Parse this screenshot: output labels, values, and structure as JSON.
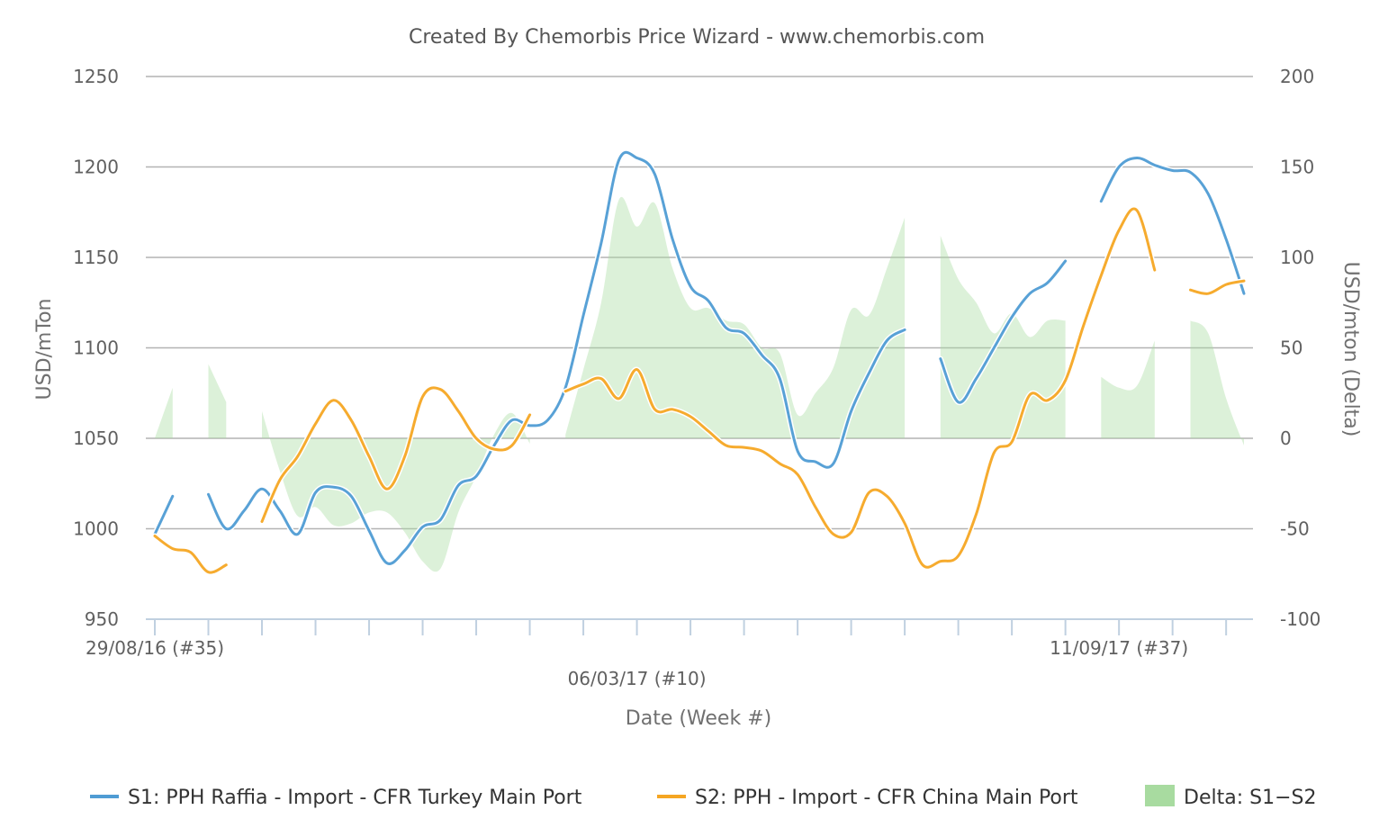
{
  "chart_data": {
    "type": "line",
    "title": "Created By Chemorbis Price Wizard - www.chemorbis.com",
    "xlabel": "Date (Week #)",
    "ylabel": "USD/mTon",
    "y2label": "USD/mton (Delta)",
    "ylim": [
      950,
      1250
    ],
    "y2lim": [
      -100,
      200
    ],
    "yticks": [
      950,
      1000,
      1050,
      1100,
      1150,
      1200,
      1250
    ],
    "y2ticks": [
      -100,
      -50,
      0,
      50,
      100,
      150,
      200
    ],
    "xlim": [
      0,
      61
    ],
    "x_tick_positions": [
      0,
      3,
      6,
      9,
      12,
      15,
      18,
      21,
      24,
      27,
      30,
      33,
      36,
      39,
      42,
      45,
      48,
      51,
      54,
      57,
      60
    ],
    "x_tick_labels": [
      {
        "x": 0,
        "label": "29/08/16 (#35)",
        "row": 0
      },
      {
        "x": 27,
        "label": "06/03/17 (#10)",
        "row": 1
      },
      {
        "x": 54,
        "label": "11/09/17 (#37)",
        "row": 0
      }
    ],
    "grid": true,
    "legend_position": "bottom",
    "colors": {
      "s1": "#4f9cd4",
      "s2": "#f5a623",
      "delta": "#a8dba0"
    },
    "series": [
      {
        "name": "S1: PPH Raffia - Import - CFR Turkey Main Port",
        "axis": "left",
        "segments": [
          [
            [
              0,
              997
            ],
            [
              1,
              1018
            ]
          ],
          [
            [
              3,
              1019
            ],
            [
              4,
              1000
            ],
            [
              5,
              1010
            ],
            [
              6,
              1022
            ],
            [
              7,
              1010
            ],
            [
              8,
              997
            ],
            [
              9,
              1020
            ],
            [
              10,
              1023
            ],
            [
              11,
              1018
            ],
            [
              12,
              999
            ],
            [
              13,
              981
            ],
            [
              14,
              988
            ],
            [
              15,
              1001
            ],
            [
              16,
              1005
            ],
            [
              17,
              1024
            ],
            [
              18,
              1029
            ],
            [
              19,
              1046
            ],
            [
              20,
              1060
            ],
            [
              21,
              1057
            ],
            [
              22,
              1060
            ],
            [
              23,
              1078
            ],
            [
              24,
              1118
            ],
            [
              25,
              1158
            ],
            [
              26,
              1204
            ],
            [
              27,
              1205
            ],
            [
              28,
              1196
            ],
            [
              29,
              1160
            ],
            [
              30,
              1134
            ],
            [
              31,
              1126
            ],
            [
              32,
              1111
            ],
            [
              33,
              1108
            ],
            [
              34,
              1096
            ],
            [
              35,
              1083
            ],
            [
              36,
              1043
            ],
            [
              37,
              1037
            ],
            [
              38,
              1036
            ],
            [
              39,
              1065
            ],
            [
              40,
              1086
            ],
            [
              41,
              1104
            ],
            [
              42,
              1110
            ]
          ],
          [
            [
              44,
              1094
            ],
            [
              45,
              1070
            ],
            [
              46,
              1083
            ],
            [
              47,
              1100
            ],
            [
              48,
              1117
            ],
            [
              49,
              1130
            ],
            [
              50,
              1136
            ],
            [
              51,
              1148
            ]
          ],
          [
            [
              53,
              1181
            ],
            [
              54,
              1200
            ],
            [
              55,
              1205
            ],
            [
              56,
              1201
            ],
            [
              57,
              1198
            ],
            [
              58,
              1197
            ],
            [
              59,
              1185
            ],
            [
              60,
              1160
            ],
            [
              61,
              1130
            ]
          ]
        ]
      },
      {
        "name": "S2: PPH - Import - CFR China Main Port",
        "axis": "left",
        "segments": [
          [
            [
              0,
              996
            ],
            [
              1,
              989
            ],
            [
              2,
              987
            ],
            [
              3,
              976
            ],
            [
              4,
              980
            ]
          ],
          [
            [
              6,
              1004
            ],
            [
              7,
              1027
            ],
            [
              8,
              1040
            ],
            [
              9,
              1058
            ],
            [
              10,
              1071
            ],
            [
              11,
              1060
            ],
            [
              12,
              1040
            ],
            [
              13,
              1022
            ],
            [
              14,
              1040
            ],
            [
              15,
              1073
            ],
            [
              16,
              1077
            ],
            [
              17,
              1065
            ],
            [
              18,
              1050
            ],
            [
              19,
              1044
            ],
            [
              20,
              1046
            ],
            [
              21,
              1063
            ]
          ],
          [
            [
              23,
              1076
            ],
            [
              24,
              1080
            ],
            [
              25,
              1083
            ],
            [
              26,
              1072
            ],
            [
              27,
              1088
            ],
            [
              28,
              1066
            ],
            [
              29,
              1066
            ],
            [
              30,
              1062
            ],
            [
              31,
              1054
            ],
            [
              32,
              1046
            ],
            [
              33,
              1045
            ],
            [
              34,
              1043
            ],
            [
              35,
              1036
            ],
            [
              36,
              1030
            ],
            [
              37,
              1012
            ],
            [
              38,
              997
            ],
            [
              39,
              998
            ],
            [
              40,
              1020
            ],
            [
              41,
              1018
            ],
            [
              42,
              1003
            ],
            [
              43,
              980
            ],
            [
              44,
              982
            ],
            [
              45,
              985
            ],
            [
              46,
              1008
            ],
            [
              47,
              1042
            ],
            [
              48,
              1048
            ],
            [
              49,
              1074
            ],
            [
              50,
              1071
            ],
            [
              51,
              1082
            ],
            [
              52,
              1112
            ],
            [
              53,
              1140
            ],
            [
              54,
              1165
            ],
            [
              55,
              1176
            ],
            [
              56,
              1143
            ]
          ],
          [
            [
              58,
              1132
            ],
            [
              59,
              1130
            ],
            [
              60,
              1135
            ],
            [
              61,
              1137
            ]
          ]
        ]
      },
      {
        "name": "Delta: S1−S2",
        "axis": "right",
        "type": "area",
        "segments": [
          [
            [
              0,
              0
            ],
            [
              1,
              28
            ]
          ],
          [
            [
              3,
              41
            ],
            [
              4,
              20
            ]
          ],
          [
            [
              6,
              15
            ],
            [
              7,
              -18
            ],
            [
              8,
              -43
            ],
            [
              9,
              -38
            ],
            [
              10,
              -48
            ],
            [
              11,
              -47
            ],
            [
              12,
              -41
            ],
            [
              13,
              -41
            ],
            [
              14,
              -52
            ],
            [
              15,
              -68
            ],
            [
              16,
              -72
            ],
            [
              17,
              -41
            ],
            [
              18,
              -21
            ],
            [
              19,
              2
            ],
            [
              20,
              14
            ],
            [
              21,
              -3
            ]
          ],
          [
            [
              23,
              2
            ],
            [
              24,
              38
            ],
            [
              25,
              75
            ],
            [
              26,
              132
            ],
            [
              27,
              117
            ],
            [
              28,
              130
            ],
            [
              29,
              94
            ],
            [
              30,
              72
            ],
            [
              31,
              72
            ],
            [
              32,
              65
            ],
            [
              33,
              63
            ],
            [
              34,
              50
            ],
            [
              35,
              47
            ],
            [
              36,
              13
            ],
            [
              37,
              25
            ],
            [
              38,
              39
            ],
            [
              39,
              71
            ],
            [
              40,
              68
            ],
            [
              41,
              94
            ],
            [
              42,
              122
            ]
          ],
          [
            [
              44,
              112
            ],
            [
              45,
              88
            ],
            [
              46,
              75
            ],
            [
              47,
              58
            ],
            [
              48,
              69
            ],
            [
              49,
              56
            ],
            [
              50,
              65
            ],
            [
              51,
              65
            ]
          ],
          [
            [
              53,
              34
            ],
            [
              54,
              28
            ],
            [
              55,
              29
            ],
            [
              56,
              54
            ]
          ],
          [
            [
              58,
              65
            ],
            [
              59,
              58
            ],
            [
              60,
              22
            ],
            [
              61,
              -4
            ]
          ]
        ]
      }
    ]
  }
}
